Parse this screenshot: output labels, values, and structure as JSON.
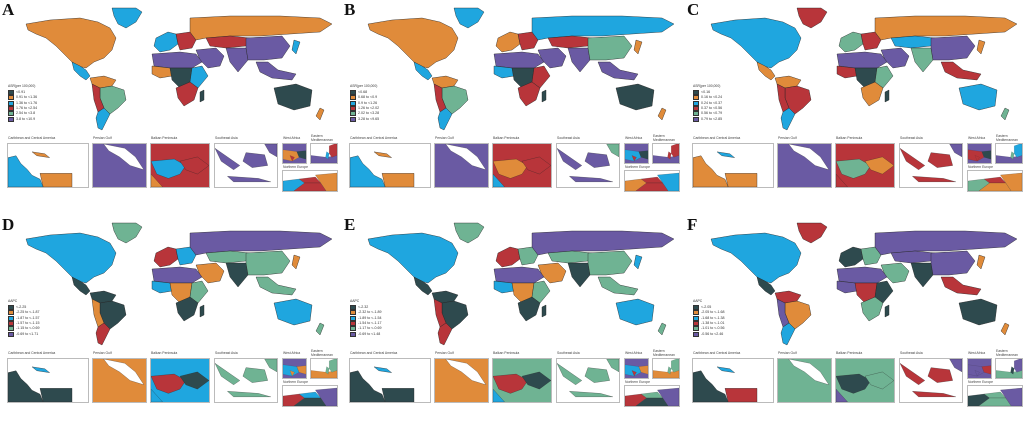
{
  "figure": {
    "palette": {
      "c1": "#2e4a4e",
      "c2": "#e08b3a",
      "c3": "#1fa6df",
      "c4": "#b8353a",
      "c5": "#6fb393",
      "c6": "#6a5aa3"
    },
    "inset_labels": {
      "caribbean": "Caribbean and Central America",
      "persian_gulf": "Persian Gulf",
      "balkan": "Balkan Peninsula",
      "southeast_asia": "Southeast Asia",
      "west_africa": "West Africa",
      "eastern_med": "Eastern Mediterranean",
      "northern_europe": "Northern Europe"
    },
    "panels": [
      {
        "letter": "A",
        "legend_title": "ASR(per 100,000)",
        "legend": [
          "<0.91",
          "0.91 to <1.36",
          "1.36 to <1.76",
          "1.76 to <2.54",
          "2.54 to <3.8",
          "3.8 to <10.9"
        ]
      },
      {
        "letter": "B",
        "legend_title": "ASR(per 100,000)",
        "legend": [
          "<0.68",
          "0.68 to <0.9",
          "0.9 to <1.26",
          "1.26 to <2.02",
          "2.02 to <3.28",
          "3.28 to <9.65"
        ]
      },
      {
        "letter": "C",
        "legend_title": "ASR(per 100,000)",
        "legend": [
          "<0.16",
          "0.16 to <0.24",
          "0.24 to <0.37",
          "0.37 to <0.56",
          "0.56 to <0.79",
          "0.79 to <2.85"
        ]
      },
      {
        "letter": "D",
        "legend_title": "AAPC",
        "legend": [
          "<-2.25",
          "-2.25 to <-1.87",
          "-1.87 to <-1.57",
          "-1.57 to <-1.15",
          "-1.15 to <-0.69",
          "-0.69 to <1.71"
        ]
      },
      {
        "letter": "E",
        "legend_title": "AAPC",
        "legend": [
          "<-2.32",
          "-2.32 to <-1.89",
          "-1.89 to <-1.54",
          "-1.54 to <-1.17",
          "-1.17 to <-0.69",
          "-0.69 to <1.48"
        ]
      },
      {
        "letter": "F",
        "legend_title": "AAPC",
        "legend": [
          "<-2.05",
          "-2.05 to <-1.68",
          "-1.68 to <-1.38",
          "-1.38 to <-1.01",
          "-1.01 to <-0.56",
          "-0.56 to <2.46"
        ]
      }
    ]
  }
}
